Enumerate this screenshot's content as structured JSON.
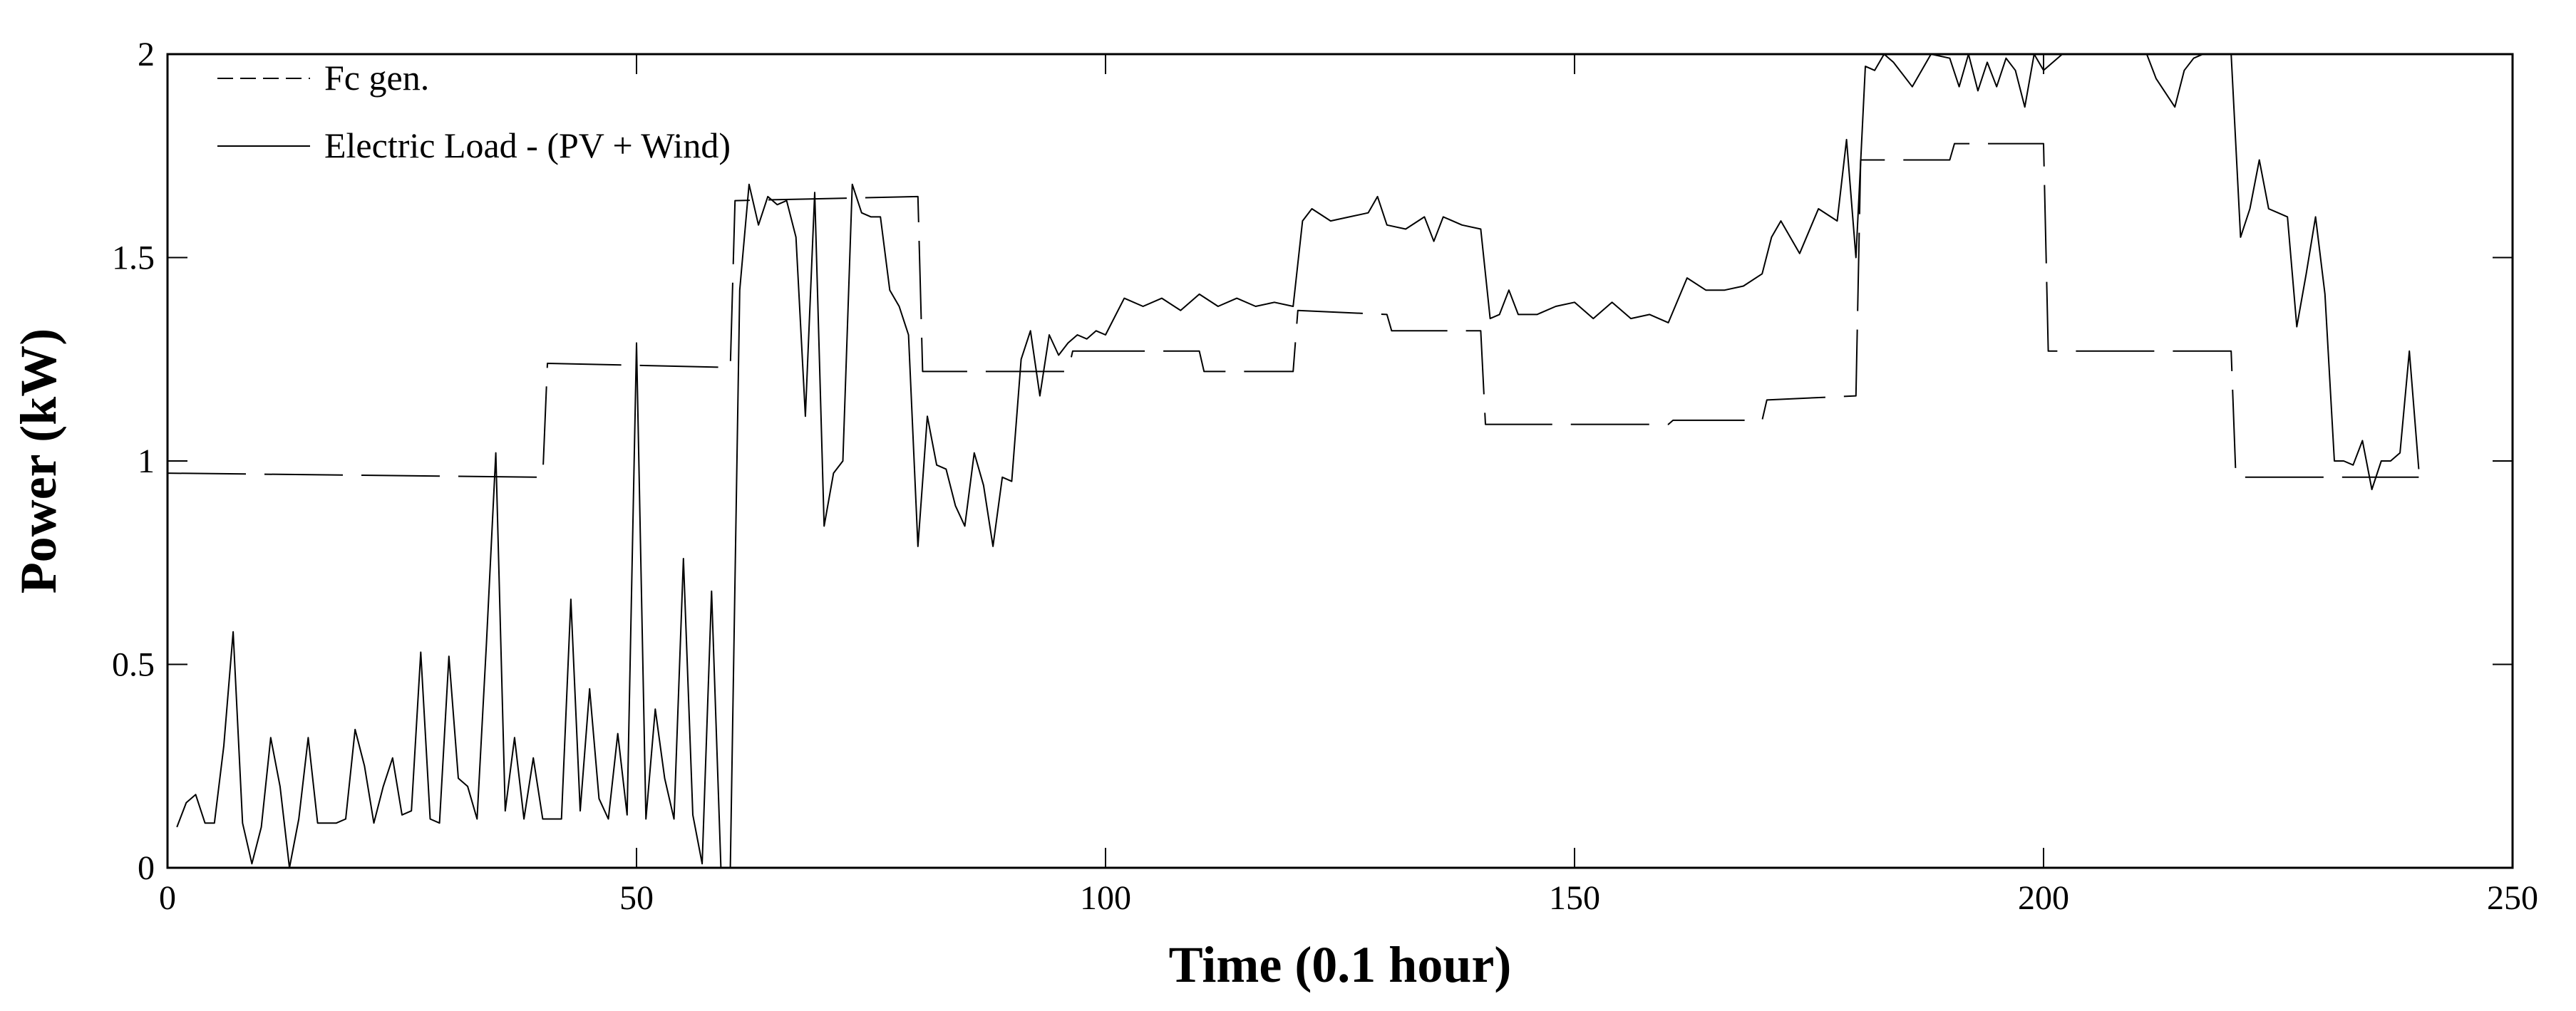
{
  "chart_data": {
    "type": "line",
    "title": "",
    "xlabel": "Time (0.1 hour)",
    "ylabel": "Power (kW)",
    "xlim": [
      0,
      250
    ],
    "ylim": [
      0,
      2
    ],
    "xticks": [
      0,
      50,
      100,
      150,
      200,
      250
    ],
    "yticks": [
      0,
      0.5,
      1,
      1.5,
      2
    ],
    "xtick_labels": [
      "0",
      "50",
      "100",
      "150",
      "200",
      "250"
    ],
    "ytick_labels": [
      "0",
      "0.5",
      "1",
      "1.5",
      "2"
    ],
    "grid": false,
    "legend_position": "top-left",
    "series": [
      {
        "name": "Fc gen.",
        "style": "dashed",
        "color": "#000000",
        "x": [
          0,
          40,
          40.5,
          60,
          60.5,
          80,
          80.5,
          96,
          96.5,
          110,
          110.5,
          120,
          120.5,
          130,
          130.5,
          140,
          140.5,
          160,
          160.5,
          170,
          170.5,
          180,
          180.5,
          190,
          190.5,
          200,
          200.5,
          210,
          210.5,
          220,
          220.5,
          240
        ],
        "values": [
          0.97,
          0.96,
          1.24,
          1.23,
          1.64,
          1.65,
          1.22,
          1.22,
          1.27,
          1.27,
          1.22,
          1.22,
          1.37,
          1.36,
          1.32,
          1.32,
          1.09,
          1.09,
          1.1,
          1.1,
          1.15,
          1.16,
          1.74,
          1.74,
          1.78,
          1.78,
          1.27,
          1.27,
          1.27,
          1.27,
          0.96,
          0.96
        ]
      },
      {
        "name": "Electric Load - (PV + Wind)",
        "style": "solid",
        "color": "#000000",
        "x": [
          1,
          2,
          3,
          4,
          5,
          6,
          7,
          8,
          9,
          10,
          11,
          12,
          13,
          14,
          15,
          16,
          17,
          18,
          19,
          20,
          21,
          22,
          23,
          24,
          25,
          26,
          27,
          28,
          29,
          30,
          31,
          32,
          33,
          34,
          35,
          36,
          37,
          38,
          39,
          40,
          41,
          42,
          43,
          44,
          45,
          46,
          47,
          48,
          49,
          50,
          51,
          52,
          53,
          54,
          55,
          56,
          57,
          58,
          59,
          60,
          61,
          62,
          63,
          64,
          65,
          66,
          67,
          68,
          69,
          70,
          71,
          72,
          73,
          74,
          75,
          76,
          77,
          78,
          79,
          80,
          81,
          82,
          83,
          84,
          85,
          86,
          87,
          88,
          89,
          90,
          91,
          92,
          93,
          94,
          95,
          96,
          97,
          98,
          99,
          100,
          102,
          104,
          106,
          108,
          110,
          112,
          114,
          116,
          118,
          120,
          121,
          122,
          124,
          126,
          128,
          129,
          130,
          132,
          134,
          135,
          136,
          138,
          140,
          141,
          142,
          143,
          144,
          146,
          148,
          150,
          152,
          154,
          156,
          158,
          160,
          162,
          164,
          166,
          168,
          170,
          171,
          172,
          174,
          176,
          178,
          179,
          180,
          181,
          182,
          183,
          184,
          186,
          188,
          190,
          191,
          192,
          193,
          194,
          195,
          196,
          197,
          198,
          199,
          200,
          202,
          204,
          206,
          208,
          210,
          211,
          212,
          214,
          215,
          216,
          217,
          218,
          219,
          220,
          221,
          222,
          223,
          224,
          225,
          226,
          227,
          228,
          229,
          230,
          231,
          232,
          233,
          234,
          235,
          236,
          237,
          238,
          239,
          240
        ],
        "values": [
          0.1,
          0.16,
          0.18,
          0.11,
          0.11,
          0.3,
          0.58,
          0.11,
          0.01,
          0.1,
          0.32,
          0.2,
          0.0,
          0.12,
          0.32,
          0.11,
          0.11,
          0.11,
          0.12,
          0.34,
          0.25,
          0.11,
          0.2,
          0.27,
          0.13,
          0.14,
          0.53,
          0.12,
          0.11,
          0.52,
          0.22,
          0.2,
          0.12,
          0.55,
          1.02,
          0.14,
          0.32,
          0.12,
          0.27,
          0.12,
          0.12,
          0.12,
          0.66,
          0.14,
          0.44,
          0.17,
          0.12,
          0.33,
          0.13,
          1.29,
          0.12,
          0.39,
          0.22,
          0.12,
          0.76,
          0.13,
          0.01,
          0.68,
          0.0,
          0.0,
          1.42,
          1.68,
          1.58,
          1.65,
          1.63,
          1.64,
          1.55,
          1.11,
          1.66,
          0.84,
          0.97,
          1.0,
          1.68,
          1.61,
          1.6,
          1.6,
          1.42,
          1.38,
          1.31,
          0.79,
          1.11,
          0.99,
          0.98,
          0.89,
          0.84,
          1.02,
          0.94,
          0.79,
          0.96,
          0.95,
          1.25,
          1.32,
          1.16,
          1.31,
          1.26,
          1.29,
          1.31,
          1.3,
          1.32,
          1.31,
          1.4,
          1.38,
          1.4,
          1.37,
          1.41,
          1.38,
          1.4,
          1.38,
          1.39,
          1.38,
          1.59,
          1.62,
          1.59,
          1.6,
          1.61,
          1.65,
          1.58,
          1.57,
          1.6,
          1.54,
          1.6,
          1.58,
          1.57,
          1.35,
          1.36,
          1.42,
          1.36,
          1.36,
          1.38,
          1.39,
          1.35,
          1.39,
          1.35,
          1.36,
          1.34,
          1.45,
          1.42,
          1.42,
          1.43,
          1.46,
          1.55,
          1.59,
          1.51,
          1.62,
          1.59,
          1.79,
          1.5,
          1.97,
          1.96,
          2.0,
          1.98,
          1.92,
          2.0,
          1.99,
          1.92,
          2.0,
          1.91,
          1.98,
          1.92,
          1.99,
          1.96,
          1.87,
          2.0,
          1.96,
          2.0,
          2.0,
          2.0,
          2.0,
          2.0,
          2.0,
          1.94,
          1.87,
          1.96,
          1.99,
          2.0,
          2.0,
          2.0,
          2.0,
          1.55,
          1.62,
          1.74,
          1.62,
          1.61,
          1.6,
          1.33,
          1.46,
          1.6,
          1.41,
          1.0,
          1.0,
          0.99,
          1.05,
          0.93,
          1.0,
          1.0,
          1.02,
          1.27,
          0.98
        ]
      }
    ]
  }
}
